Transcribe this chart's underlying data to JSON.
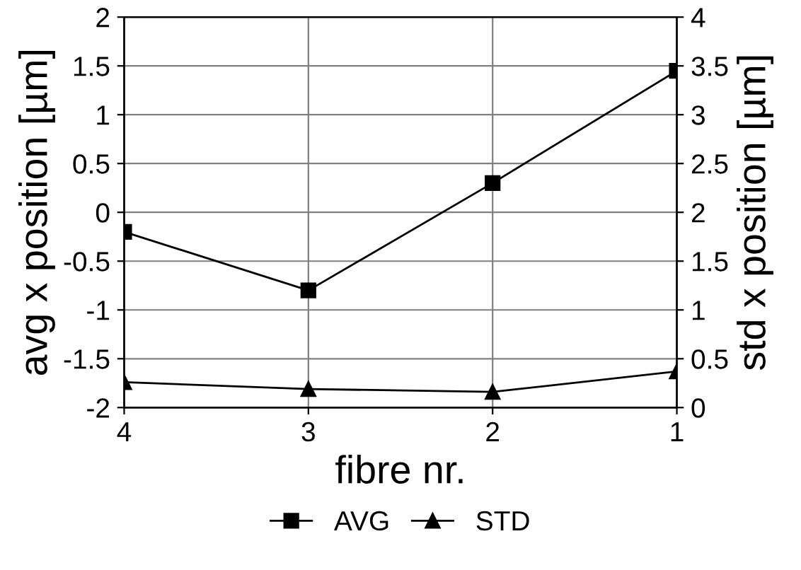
{
  "chart_data": {
    "type": "line",
    "xlabel": "fibre nr.",
    "ylabel": "avg x position [µm]",
    "y2label": "std x position [µm]",
    "categories": [
      "4",
      "3",
      "2",
      "1"
    ],
    "series": [
      {
        "name": "AVG",
        "color": "#000000",
        "marker": "square",
        "values": [
          -0.2,
          -0.8,
          0.3,
          1.45
        ]
      },
      {
        "name": "STD",
        "color": "#000000",
        "marker": "triangle",
        "axis": "y2",
        "values": [
          0.26,
          0.19,
          0.16,
          0.37
        ]
      }
    ],
    "ylim": [
      -2,
      2
    ],
    "yticks": [
      -2,
      -1.5,
      -1,
      -0.5,
      0,
      0.5,
      1,
      1.5,
      2
    ],
    "y2lim": [
      0,
      4
    ],
    "y2ticks": [
      0,
      0.5,
      1,
      1.5,
      2,
      2.5,
      3,
      3.5,
      4
    ],
    "grid": true,
    "legend": "bottom",
    "line_style": "solid"
  }
}
